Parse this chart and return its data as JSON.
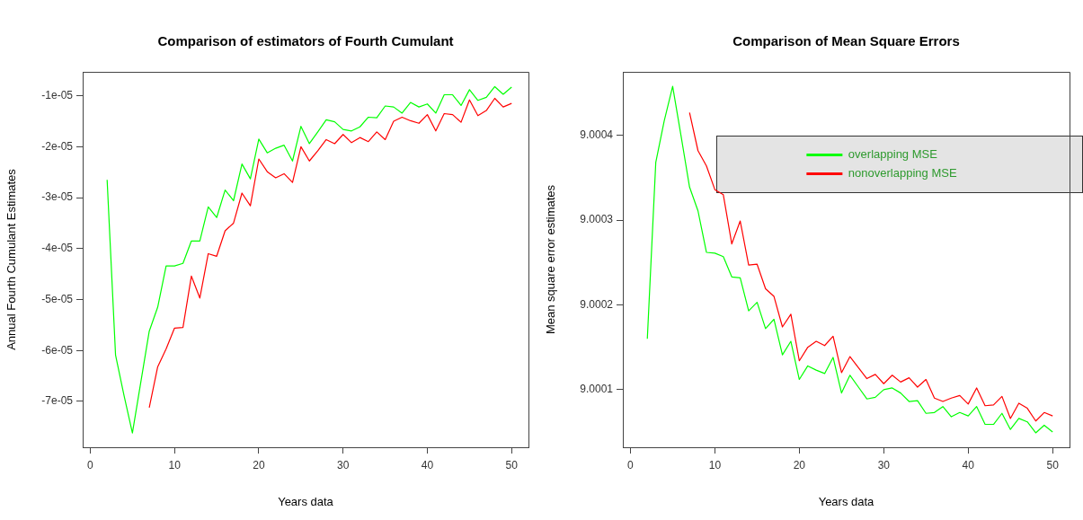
{
  "chart_data": [
    {
      "type": "line",
      "title": "Comparison of estimators of Fourth Cumulant",
      "xlabel": "Years data",
      "ylabel": "Annual Fourth Cumulant Estimates",
      "x": [
        2,
        3,
        4,
        5,
        6,
        7,
        8,
        9,
        10,
        11,
        12,
        13,
        14,
        15,
        16,
        17,
        18,
        19,
        20,
        21,
        22,
        23,
        24,
        25,
        26,
        27,
        28,
        29,
        30,
        31,
        32,
        33,
        34,
        35,
        36,
        37,
        38,
        39,
        40,
        41,
        42,
        43,
        44,
        45,
        46,
        47,
        48,
        49,
        50
      ],
      "xlim": [
        -0.9,
        52
      ],
      "xticks": [
        0,
        10,
        20,
        30,
        40,
        50
      ],
      "ylim": [
        -7.9e-05,
        -5.3e-06
      ],
      "yticks": [
        {
          "value": -7e-05,
          "label": "-7e-05"
        },
        {
          "value": -6e-05,
          "label": "-6e-05"
        },
        {
          "value": -5e-05,
          "label": "-5e-05"
        },
        {
          "value": -4e-05,
          "label": "-4e-05"
        },
        {
          "value": -3e-05,
          "label": "-3e-05"
        },
        {
          "value": -2e-05,
          "label": "-2e-05"
        },
        {
          "value": -1e-05,
          "label": "-1e-05"
        }
      ],
      "series": [
        {
          "color": "#00ff00",
          "values": [
            -2.65e-05,
            -6.09e-05,
            -6.88e-05,
            -7.62e-05,
            -6.62e-05,
            -5.62e-05,
            -5.15e-05,
            -4.34e-05,
            -4.34e-05,
            -4.29e-05,
            -3.85e-05,
            -3.85e-05,
            -3.18e-05,
            -3.39e-05,
            -2.85e-05,
            -3.06e-05,
            -2.34e-05,
            -2.63e-05,
            -1.85e-05,
            -2.12e-05,
            -2.03e-05,
            -1.97e-05,
            -2.28e-05,
            -1.6e-05,
            -1.94e-05,
            -1.71e-05,
            -1.47e-05,
            -1.51e-05,
            -1.66e-05,
            -1.69e-05,
            -1.61e-05,
            -1.42e-05,
            -1.43e-05,
            -1.2e-05,
            -1.22e-05,
            -1.34e-05,
            -1.13e-05,
            -1.22e-05,
            -1.16e-05,
            -1.34e-05,
            -9.8e-06,
            -9.8e-06,
            -1.19e-05,
            -8.8e-06,
            -1.09e-05,
            -1.03e-05,
            -8.2e-06,
            -9.7e-06,
            -8.3e-06
          ]
        },
        {
          "color": "#ff0000",
          "values": [
            null,
            null,
            null,
            null,
            null,
            -7.12e-05,
            -6.32e-05,
            -5.97e-05,
            -5.56e-05,
            -5.55e-05,
            -4.54e-05,
            -4.97e-05,
            -4.1e-05,
            -4.15e-05,
            -3.65e-05,
            -3.5e-05,
            -2.91e-05,
            -3.16e-05,
            -2.24e-05,
            -2.49e-05,
            -2.61e-05,
            -2.53e-05,
            -2.7e-05,
            -2e-05,
            -2.28e-05,
            -2.08e-05,
            -1.86e-05,
            -1.94e-05,
            -1.76e-05,
            -1.92e-05,
            -1.82e-05,
            -1.9e-05,
            -1.71e-05,
            -1.86e-05,
            -1.5e-05,
            -1.42e-05,
            -1.49e-05,
            -1.54e-05,
            -1.37e-05,
            -1.69e-05,
            -1.35e-05,
            -1.37e-05,
            -1.52e-05,
            -1.08e-05,
            -1.39e-05,
            -1.29e-05,
            -1.05e-05,
            -1.22e-05,
            -1.15e-05
          ]
        }
      ]
    },
    {
      "type": "line",
      "title": "Comparison of Mean Square Errors",
      "xlabel": "Years data",
      "ylabel": "Mean square error estimates",
      "x": [
        2,
        3,
        4,
        5,
        6,
        7,
        8,
        9,
        10,
        11,
        12,
        13,
        14,
        15,
        16,
        17,
        18,
        19,
        20,
        21,
        22,
        23,
        24,
        25,
        26,
        27,
        28,
        29,
        30,
        31,
        32,
        33,
        34,
        35,
        36,
        37,
        38,
        39,
        40,
        41,
        42,
        43,
        44,
        45,
        46,
        47,
        48,
        49,
        50
      ],
      "xlim": [
        -0.9,
        52
      ],
      "xticks": [
        0,
        10,
        20,
        30,
        40,
        50
      ],
      "ylim": [
        9.000032,
        9.000475
      ],
      "yticks": [
        9.0001,
        9.0002,
        9.0003,
        9.0004
      ],
      "legend": "top right",
      "series": [
        {
          "name": "overlapping MSE",
          "color": "#00ff00",
          "values": [
            9.00016,
            9.000368,
            9.000417,
            9.000458,
            9.000399,
            9.000339,
            9.000311,
            9.000262,
            9.000261,
            9.000257,
            9.000233,
            9.000232,
            9.000193,
            9.000203,
            9.000172,
            9.000183,
            9.000141,
            9.000157,
            9.000112,
            9.000128,
            9.000123,
            9.000119,
            9.000138,
            9.000096,
            9.000117,
            9.000103,
            9.000089,
            9.000091,
            9.0001,
            9.000102,
            9.000096,
            9.000086,
            9.000087,
            9.000072,
            9.000073,
            9.00008,
            9.000068,
            9.000073,
            9.000069,
            9.00008,
            9.000059,
            9.000059,
            9.000072,
            9.000053,
            9.000066,
            9.000062,
            9.000049,
            9.000058,
            9.00005
          ]
        },
        {
          "name": "nonoverlapping MSE",
          "color": "#ff0000",
          "values": [
            null,
            null,
            null,
            null,
            null,
            9.000427,
            9.000382,
            9.000364,
            9.000336,
            9.00033,
            9.000272,
            9.000299,
            9.000247,
            9.000248,
            9.000219,
            9.00021,
            9.000174,
            9.000189,
            9.000134,
            9.00015,
            9.000157,
            9.000152,
            9.000163,
            9.00012,
            9.000139,
            9.000126,
            9.000113,
            9.000118,
            9.000107,
            9.000117,
            9.000109,
            9.000114,
            9.000103,
            9.000112,
            9.00009,
            9.000086,
            9.00009,
            9.000093,
            9.000083,
            9.000102,
            9.000081,
            9.000082,
            9.000092,
            9.000066,
            9.000084,
            9.000078,
            9.000063,
            9.000073,
            9.000069
          ]
        }
      ]
    }
  ]
}
